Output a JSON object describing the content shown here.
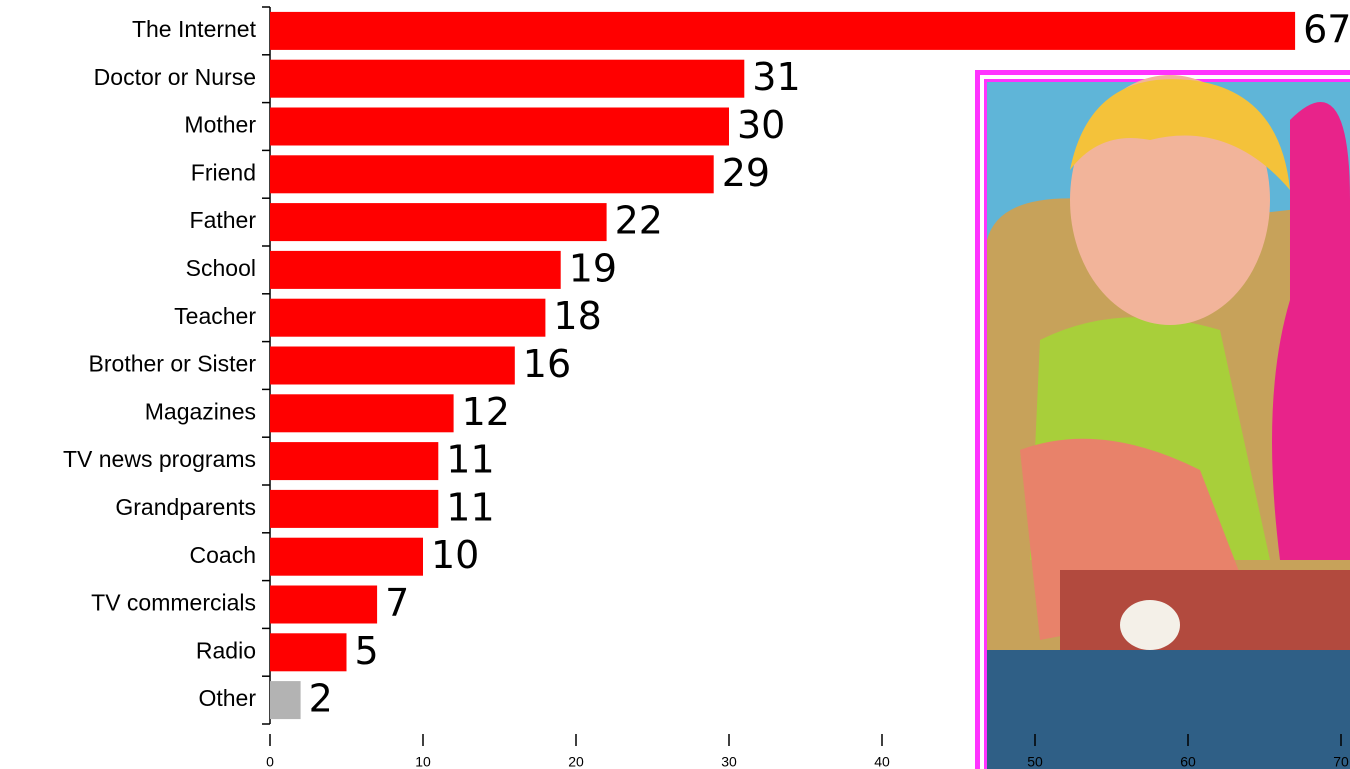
{
  "chart_data": {
    "type": "bar",
    "orientation": "horizontal",
    "categories": [
      "The Internet",
      "Doctor or Nurse",
      "Mother",
      "Friend",
      "Father",
      "School",
      "Teacher",
      "Brother or Sister",
      "Magazines",
      "TV news programs",
      "Grandparents",
      "Coach",
      "TV commercials",
      "Radio",
      "Other"
    ],
    "values": [
      67,
      31,
      30,
      29,
      22,
      19,
      18,
      16,
      12,
      11,
      11,
      10,
      7,
      5,
      2
    ],
    "colors": [
      "#ff0000",
      "#ff0000",
      "#ff0000",
      "#ff0000",
      "#ff0000",
      "#ff0000",
      "#ff0000",
      "#ff0000",
      "#ff0000",
      "#ff0000",
      "#ff0000",
      "#ff0000",
      "#ff0000",
      "#ff0000",
      "#b3b3b3"
    ],
    "xlim": [
      0,
      70
    ],
    "xticks": [
      0,
      10,
      20,
      30,
      40,
      50,
      60,
      70
    ],
    "grid": false
  }
}
